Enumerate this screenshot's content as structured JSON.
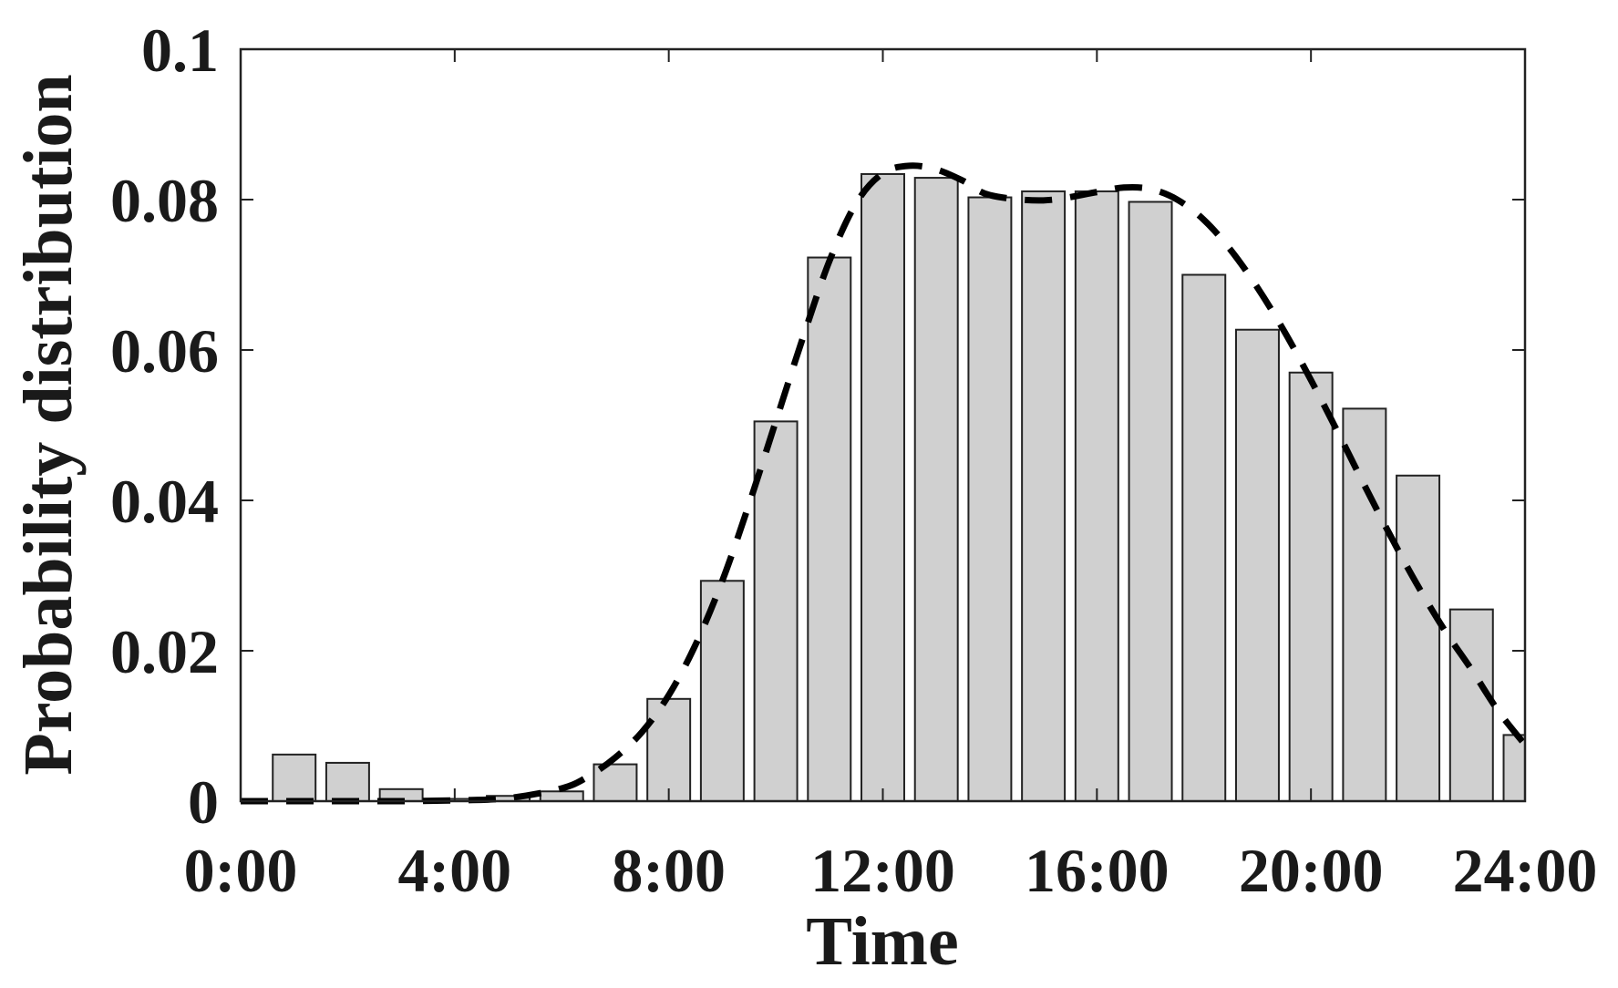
{
  "chart_data": {
    "type": "bar",
    "xlabel": "Time",
    "ylabel": "Probability distribution",
    "xlim": [
      0,
      24
    ],
    "ylim": [
      0,
      0.1
    ],
    "grid": false,
    "x_ticks": [
      {
        "value": 0,
        "label": "0:00"
      },
      {
        "value": 4,
        "label": "4:00"
      },
      {
        "value": 8,
        "label": "8:00"
      },
      {
        "value": 12,
        "label": "12:00"
      },
      {
        "value": 16,
        "label": "16:00"
      },
      {
        "value": 20,
        "label": "20:00"
      },
      {
        "value": 24,
        "label": "24:00"
      }
    ],
    "y_ticks": [
      {
        "value": 0,
        "label": "0"
      },
      {
        "value": 0.02,
        "label": "0.02"
      },
      {
        "value": 0.04,
        "label": "0.04"
      },
      {
        "value": 0.06,
        "label": "0.06"
      },
      {
        "value": 0.08,
        "label": "0.08"
      },
      {
        "value": 0.1,
        "label": "0.1"
      }
    ],
    "bars": {
      "x": [
        1,
        2,
        3,
        4,
        5,
        6,
        7,
        8,
        9,
        10,
        11,
        12,
        13,
        14,
        15,
        16,
        17,
        18,
        19,
        20,
        21,
        22,
        23,
        24
      ],
      "values": [
        0.0062,
        0.0051,
        0.0016,
        0.0003,
        0.0007,
        0.0013,
        0.0049,
        0.0136,
        0.0293,
        0.0505,
        0.0723,
        0.0834,
        0.0829,
        0.0803,
        0.0811,
        0.0811,
        0.0797,
        0.07,
        0.0627,
        0.057,
        0.0522,
        0.0433,
        0.0255,
        0.0088
      ]
    },
    "fit_line": {
      "style": "dashed",
      "color": "#000000",
      "x": [
        0,
        1,
        2,
        3,
        4,
        5,
        6,
        6.5,
        7,
        7.5,
        8,
        8.5,
        9,
        9.5,
        10,
        10.5,
        11,
        11.5,
        12,
        12.5,
        13,
        13.5,
        14,
        15,
        16,
        16.5,
        17,
        17.5,
        18,
        18.5,
        19,
        19.5,
        20,
        20.5,
        21,
        21.5,
        22,
        22.5,
        23,
        23.5,
        24
      ],
      "y": [
        0.0,
        0.0,
        0.0,
        0.0,
        0.0001,
        0.0004,
        0.0017,
        0.0033,
        0.0058,
        0.0092,
        0.0141,
        0.0208,
        0.0293,
        0.0395,
        0.0505,
        0.0615,
        0.0718,
        0.0795,
        0.0835,
        0.0845,
        0.084,
        0.0825,
        0.0806,
        0.0799,
        0.081,
        0.0816,
        0.0814,
        0.08,
        0.0773,
        0.0733,
        0.0683,
        0.0625,
        0.056,
        0.0491,
        0.042,
        0.0351,
        0.0286,
        0.0227,
        0.0175,
        0.012,
        0.0075
      ]
    },
    "colors": {
      "bar_fill": "#d0d0d0",
      "bar_stroke": "#222222",
      "line": "#000000"
    }
  }
}
